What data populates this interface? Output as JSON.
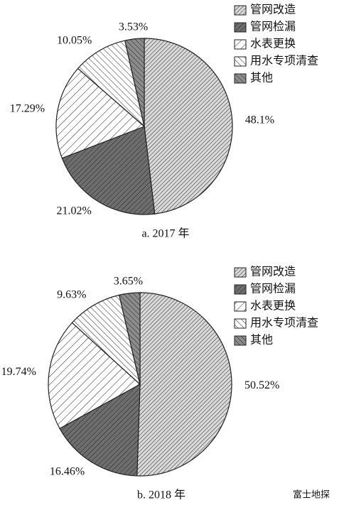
{
  "chart_data": [
    {
      "type": "pie",
      "caption": "a. 2017 年",
      "categories": [
        "管网改造",
        "管网检漏",
        "水表更换",
        "用水专项清查",
        "其他"
      ],
      "values": [
        48.1,
        21.02,
        17.29,
        10.05,
        3.53
      ],
      "value_labels": [
        "48.1%",
        "21.02%",
        "17.29%",
        "10.05%",
        "3.53%"
      ],
      "colors": [
        "#d9d9d9",
        "#6e6e6e",
        "#ffffff",
        "#ffffff",
        "#8c8c8c"
      ]
    },
    {
      "type": "pie",
      "caption": "b. 2018 年",
      "categories": [
        "管网改造",
        "管网检漏",
        "水表更换",
        "用水专项清查",
        "其他"
      ],
      "values": [
        50.52,
        16.46,
        19.74,
        9.63,
        3.65
      ],
      "value_labels": [
        "50.52%",
        "16.46%",
        "19.74%",
        "9.63%",
        "3.65%"
      ],
      "colors": [
        "#d9d9d9",
        "#6e6e6e",
        "#ffffff",
        "#ffffff",
        "#8c8c8c"
      ]
    }
  ],
  "watermark": "富士地探"
}
